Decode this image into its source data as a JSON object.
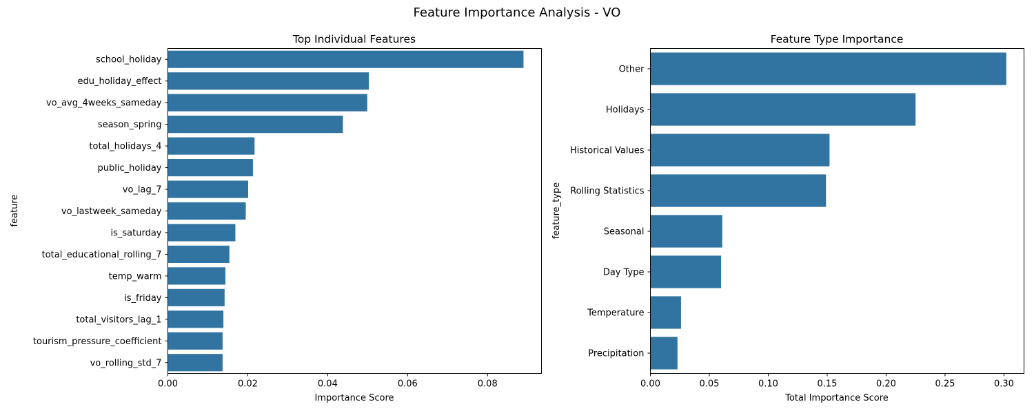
{
  "figure": {
    "title": "Feature Importance Analysis - VO"
  },
  "chart_data": [
    {
      "type": "bar",
      "orientation": "horizontal",
      "title": "Top Individual Features",
      "xlabel": "Importance Score",
      "ylabel": "feature",
      "bar_color": "#3274a1",
      "xlim": [
        0,
        0.0935
      ],
      "xticks": [
        0.0,
        0.02,
        0.04,
        0.06,
        0.08
      ],
      "xtick_labels": [
        "0.00",
        "0.02",
        "0.04",
        "0.06",
        "0.08"
      ],
      "grid": false,
      "categories": [
        "school_holiday",
        "edu_holiday_effect",
        "vo_avg_4weeks_sameday",
        "season_spring",
        "total_holidays_4",
        "public_holiday",
        "vo_lag_7",
        "vo_lastweek_sameday",
        "is_saturday",
        "total_educational_rolling_7",
        "temp_warm",
        "is_friday",
        "total_visitors_lag_1",
        "tourism_pressure_coefficient",
        "vo_rolling_std_7"
      ],
      "values": [
        0.089,
        0.0503,
        0.0499,
        0.0438,
        0.0217,
        0.0213,
        0.0201,
        0.0195,
        0.0169,
        0.0154,
        0.0144,
        0.0142,
        0.0139,
        0.0137,
        0.0137
      ]
    },
    {
      "type": "bar",
      "orientation": "horizontal",
      "title": "Feature Type Importance",
      "xlabel": "Total Importance Score",
      "ylabel": "feature_type",
      "bar_color": "#3274a1",
      "xlim": [
        0,
        0.317
      ],
      "xticks": [
        0.0,
        0.05,
        0.1,
        0.15,
        0.2,
        0.25,
        0.3
      ],
      "xtick_labels": [
        "0.00",
        "0.05",
        "0.10",
        "0.15",
        "0.20",
        "0.25",
        "0.30"
      ],
      "grid": false,
      "categories": [
        "Other",
        "Holidays",
        "Historical Values",
        "Rolling Statistics",
        "Seasonal",
        "Day Type",
        "Temperature",
        "Precipitation"
      ],
      "values": [
        0.302,
        0.225,
        0.152,
        0.149,
        0.061,
        0.06,
        0.026,
        0.023
      ]
    }
  ]
}
